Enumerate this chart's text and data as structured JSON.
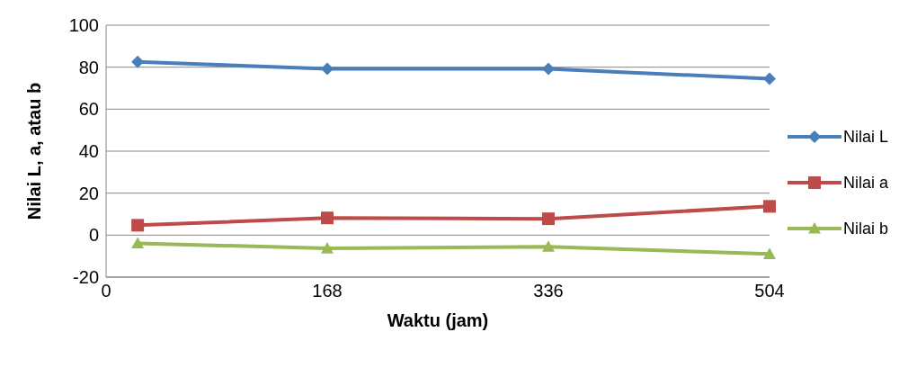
{
  "chart_data": {
    "type": "line",
    "xlabel": "Waktu (jam)",
    "ylabel": "Nilai L, a, atau b",
    "xlim": [
      0,
      504
    ],
    "xticks": [
      0,
      168,
      336,
      504
    ],
    "ylim": [
      -20,
      100
    ],
    "yticks": [
      -20,
      0,
      20,
      40,
      60,
      80,
      100
    ],
    "grid": "y",
    "legend": "right",
    "x": [
      24,
      168,
      336,
      504
    ],
    "series": [
      {
        "name": "Nilai L",
        "color": "#4a7ebb",
        "marker": "diamond",
        "values": [
          82.5,
          79.2,
          79.2,
          74.5
        ]
      },
      {
        "name": "Nilai a",
        "color": "#be4b48",
        "marker": "square",
        "values": [
          4.7,
          8.2,
          7.8,
          13.7
        ]
      },
      {
        "name": "Nilai b",
        "color": "#98b954",
        "marker": "triangle",
        "values": [
          -3.9,
          -6.3,
          -5.5,
          -9.0
        ]
      }
    ]
  }
}
